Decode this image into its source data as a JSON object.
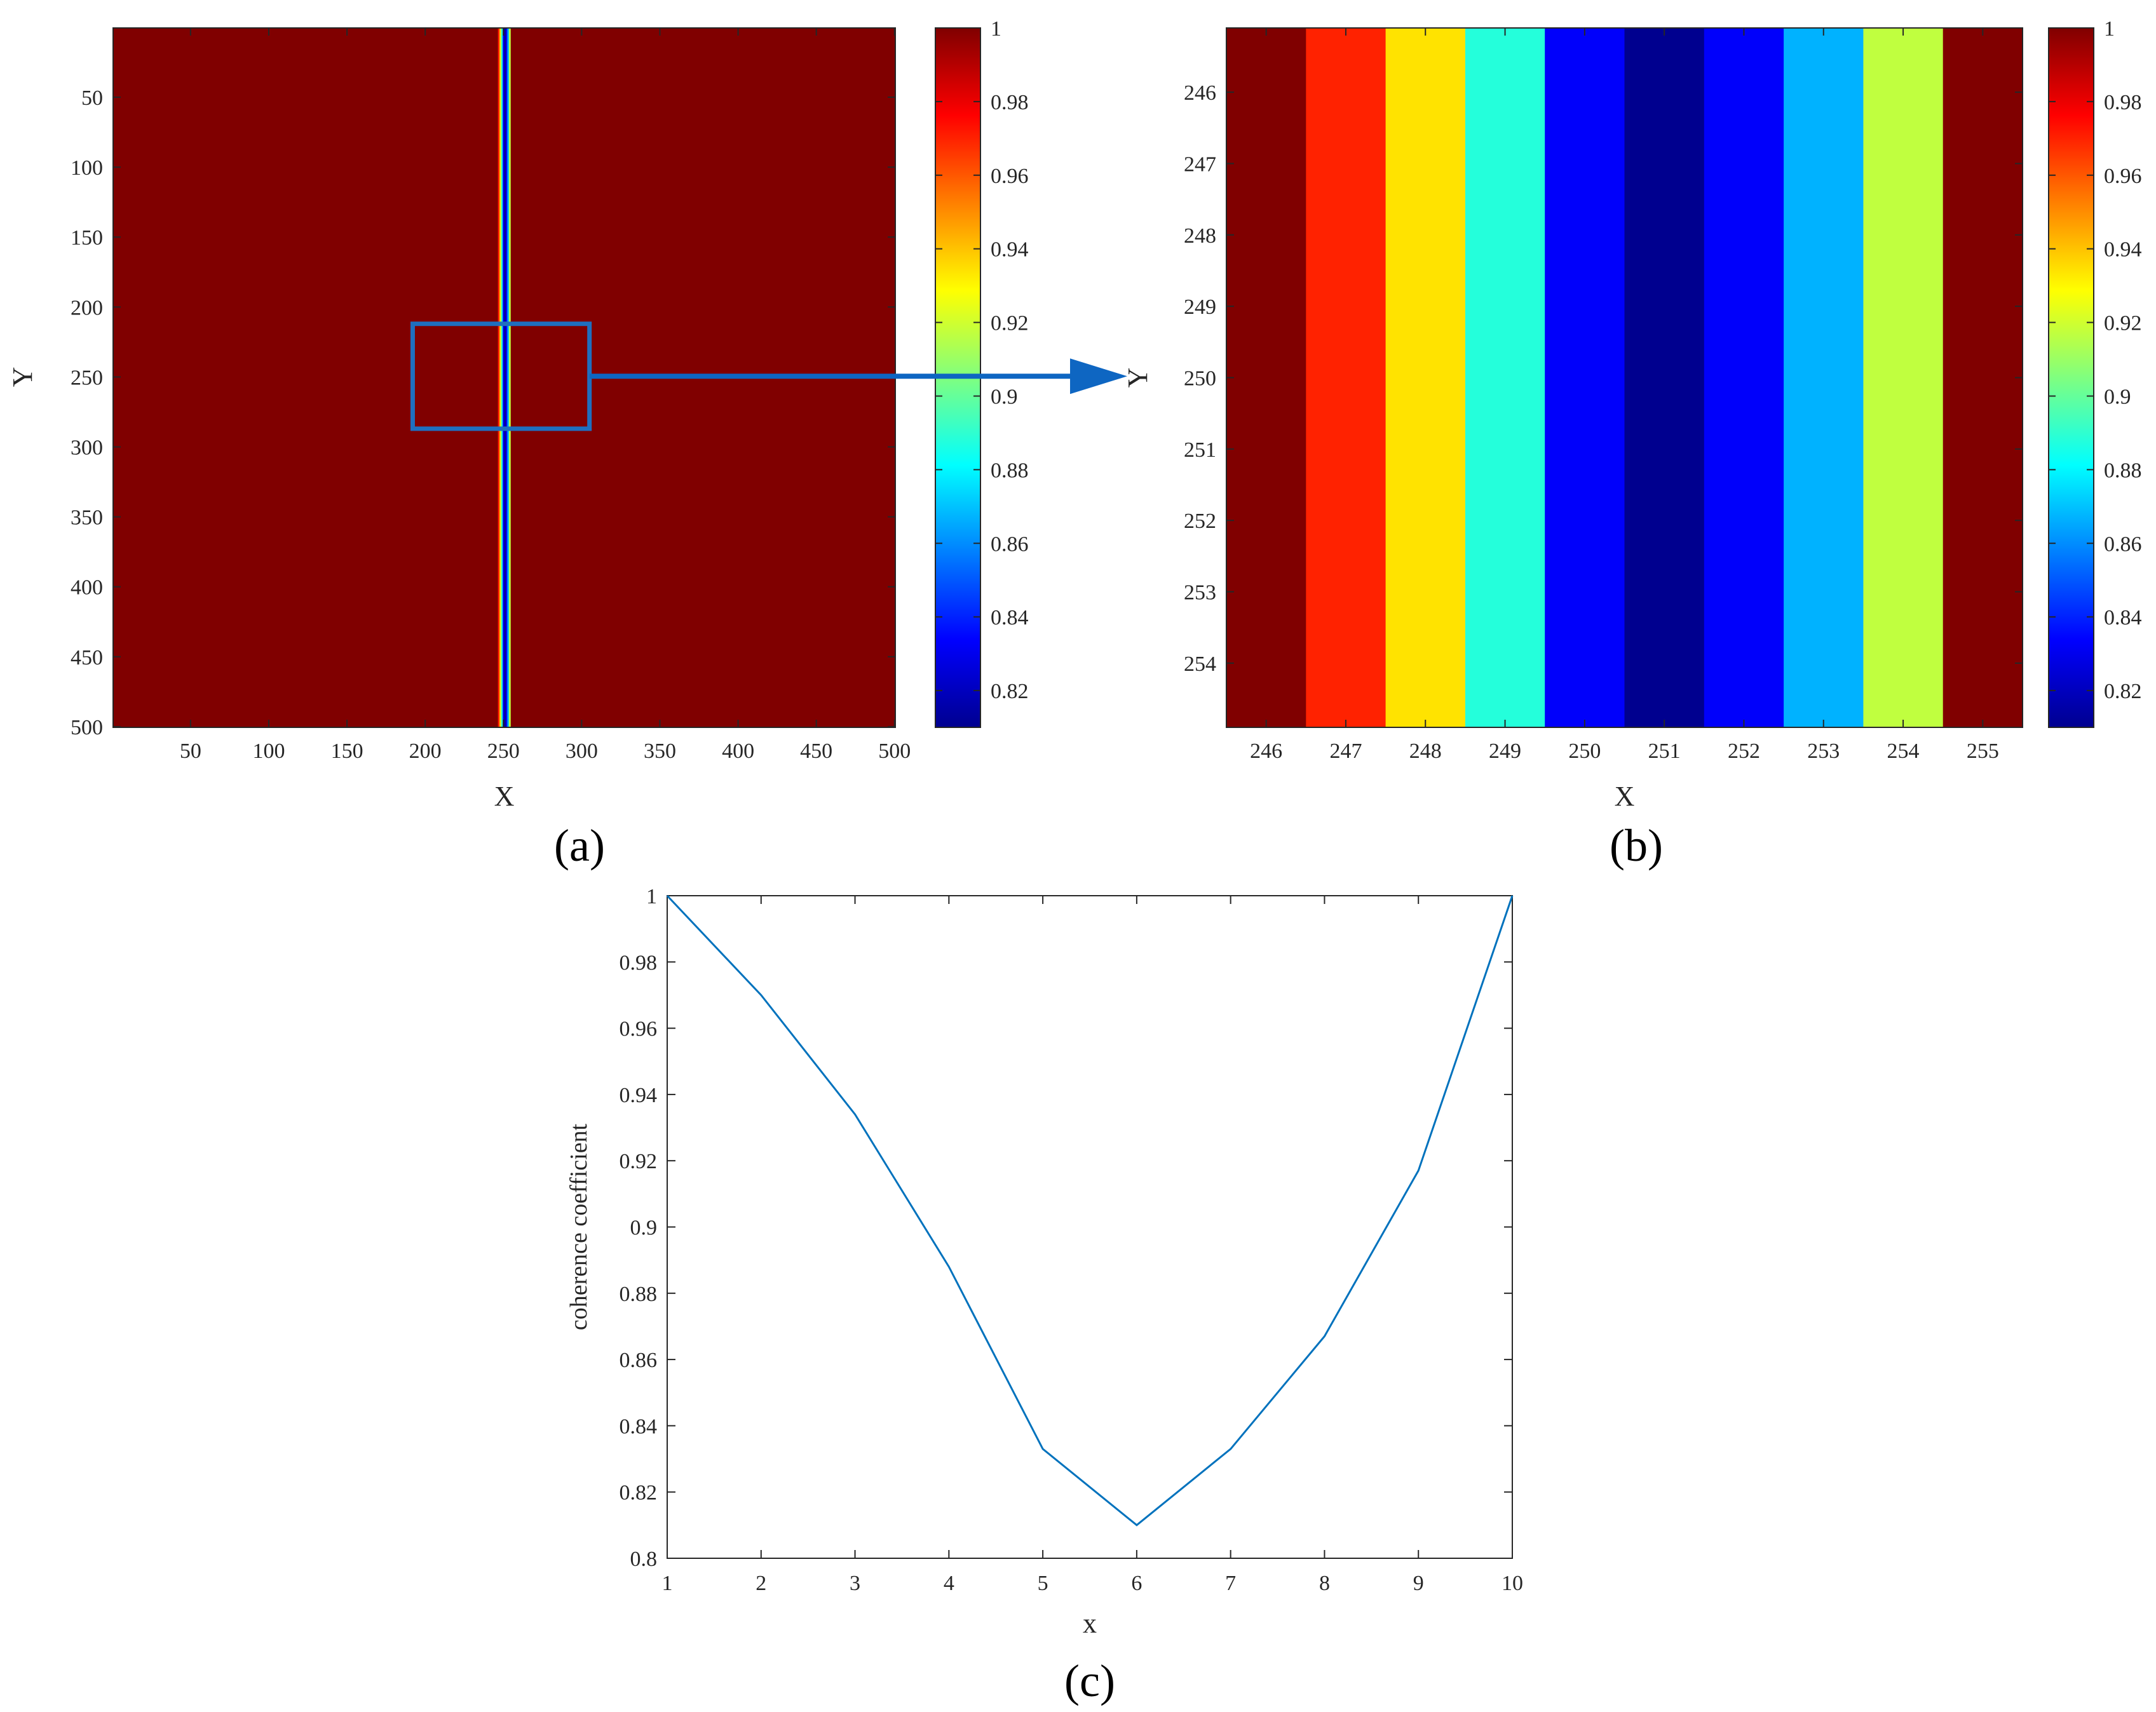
{
  "chart_data": [
    {
      "id": "a",
      "panel_label": "(a)",
      "type": "heatmap",
      "xlabel": "X",
      "ylabel": "Y",
      "xlim": [
        0.5,
        500.5
      ],
      "ylim": [
        0.5,
        500.5
      ],
      "xticks": [
        50,
        100,
        150,
        200,
        250,
        300,
        350,
        400,
        450,
        500
      ],
      "yticks": [
        50,
        100,
        150,
        200,
        250,
        300,
        350,
        400,
        450,
        500
      ],
      "background_value": 1,
      "columns": [
        {
          "x": 247,
          "value": 0.97
        },
        {
          "x": 248,
          "value": 0.934
        },
        {
          "x": 249,
          "value": 0.888
        },
        {
          "x": 250,
          "value": 0.833
        },
        {
          "x": 251,
          "value": 0.81
        },
        {
          "x": 252,
          "value": 0.833
        },
        {
          "x": 253,
          "value": 0.867
        },
        {
          "x": 254,
          "value": 0.917
        }
      ],
      "zoom_box": {
        "x": [
          192,
          305
        ],
        "y": [
          212,
          287
        ]
      },
      "colorbar": {
        "min": 0.81,
        "max": 1,
        "ticks": [
          0.82,
          0.84,
          0.86,
          0.88,
          0.9,
          0.92,
          0.94,
          0.96,
          0.98,
          1
        ],
        "colormap": "jet"
      }
    },
    {
      "id": "b",
      "panel_label": "(b)",
      "type": "heatmap",
      "xlabel": "X",
      "ylabel": "Y",
      "xlim": [
        245.5,
        255.5
      ],
      "ylim": [
        245.1,
        254.9
      ],
      "xticks": [
        246,
        247,
        248,
        249,
        250,
        251,
        252,
        253,
        254,
        255
      ],
      "yticks": [
        246,
        247,
        248,
        249,
        250,
        251,
        252,
        253,
        254
      ],
      "columns": [
        {
          "x": 246,
          "value": 1
        },
        {
          "x": 247,
          "value": 0.97
        },
        {
          "x": 248,
          "value": 0.934
        },
        {
          "x": 249,
          "value": 0.888
        },
        {
          "x": 250,
          "value": 0.833
        },
        {
          "x": 251,
          "value": 0.81
        },
        {
          "x": 252,
          "value": 0.833
        },
        {
          "x": 253,
          "value": 0.867
        },
        {
          "x": 254,
          "value": 0.917
        },
        {
          "x": 255,
          "value": 1
        }
      ],
      "colorbar": {
        "min": 0.81,
        "max": 1,
        "ticks": [
          0.82,
          0.84,
          0.86,
          0.88,
          0.9,
          0.92,
          0.94,
          0.96,
          0.98,
          1
        ],
        "colormap": "jet"
      }
    },
    {
      "id": "c",
      "panel_label": "(c)",
      "type": "line",
      "xlabel": "x",
      "ylabel": "coherence coefficient",
      "x": [
        1,
        2,
        3,
        4,
        5,
        6,
        7,
        8,
        9,
        10
      ],
      "values": [
        1,
        0.97,
        0.934,
        0.888,
        0.833,
        0.81,
        0.833,
        0.867,
        0.917,
        1
      ],
      "xlim": [
        1,
        10
      ],
      "ylim": [
        0.8,
        1
      ],
      "xticks": [
        1,
        2,
        3,
        4,
        5,
        6,
        7,
        8,
        9,
        10
      ],
      "yticks": [
        0.8,
        0.82,
        0.84,
        0.86,
        0.88,
        0.9,
        0.92,
        0.94,
        0.96,
        0.98,
        1
      ],
      "line_color": "#0072BD"
    }
  ],
  "colors": {
    "axis": "#262626",
    "annotation": "#1F6FBF",
    "arrow": "#0E66C2"
  }
}
